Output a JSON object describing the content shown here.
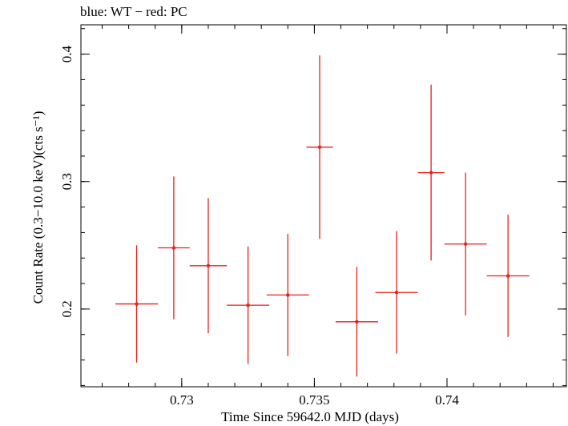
{
  "header_text": "blue: WT − red: PC",
  "chart_data": {
    "type": "scatter",
    "title": "",
    "xlabel": "Time Since 59642.0 MJD (days)",
    "ylabel": "Count Rate (0.3−10.0 keV)(cts s⁻¹)",
    "xlim": [
      0.7262,
      0.7445
    ],
    "ylim": [
      0.139,
      0.423
    ],
    "x_ticks": [
      0.73,
      0.735,
      0.74
    ],
    "x_tick_labels": [
      "0.73",
      "0.735",
      "0.74"
    ],
    "y_ticks": [
      0.2,
      0.3,
      0.4
    ],
    "y_tick_labels": [
      "0.2",
      "0.3",
      "0.4"
    ],
    "grid": false,
    "colors": {
      "PC": "#e8201c",
      "axes": "#000000"
    },
    "series": [
      {
        "name": "PC",
        "points": [
          {
            "x": 0.7283,
            "xerr": 0.0008,
            "y": 0.204,
            "yerr": 0.046
          },
          {
            "x": 0.7297,
            "xerr": 0.0006,
            "y": 0.248,
            "yerr": 0.056
          },
          {
            "x": 0.731,
            "xerr": 0.0007,
            "y": 0.234,
            "yerr": 0.053
          },
          {
            "x": 0.7325,
            "xerr": 0.0008,
            "y": 0.203,
            "yerr": 0.046
          },
          {
            "x": 0.734,
            "xerr": 0.0008,
            "y": 0.211,
            "yerr": 0.048
          },
          {
            "x": 0.7352,
            "xerr": 0.0005,
            "y": 0.327,
            "yerr": 0.072
          },
          {
            "x": 0.7366,
            "xerr": 0.0008,
            "y": 0.19,
            "yerr": 0.043
          },
          {
            "x": 0.7381,
            "xerr": 0.0008,
            "y": 0.213,
            "yerr": 0.048
          },
          {
            "x": 0.7394,
            "xerr": 0.0005,
            "y": 0.307,
            "yerr": 0.069
          },
          {
            "x": 0.7407,
            "xerr": 0.0008,
            "y": 0.251,
            "yerr": 0.056
          },
          {
            "x": 0.7423,
            "xerr": 0.0008,
            "y": 0.226,
            "yerr": 0.048
          }
        ]
      }
    ]
  }
}
